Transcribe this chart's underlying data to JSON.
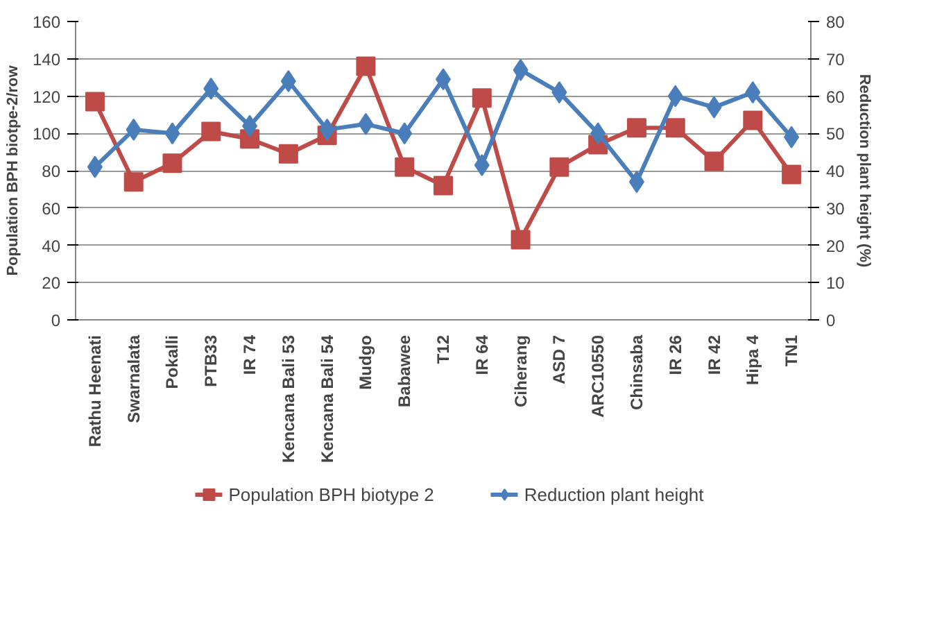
{
  "chart_data": {
    "type": "line",
    "categories": [
      "Rathu Heenati",
      "Swarnalata",
      "Pokalli",
      "PTB33",
      "IR 74",
      "Kencana Bali 53",
      "Kencana Bali 54",
      "Mudgo",
      "Babawee",
      "T12",
      "IR 64",
      "Ciherang",
      "ASD 7",
      "ARC10550",
      "Chinsaba",
      "IR 26",
      "IR 42",
      "Hipa 4",
      "TN1"
    ],
    "series": [
      {
        "name": "Population BPH biotype 2",
        "color": "#be4b48",
        "marker": "square",
        "values": [
          117,
          74,
          84,
          101,
          97,
          89,
          99,
          136,
          82,
          72,
          119,
          43,
          82,
          94,
          103,
          103,
          85,
          107,
          78
        ]
      },
      {
        "name": "Reduction plant height",
        "color": "#4a7ebb",
        "marker": "diamond",
        "axis": "y2",
        "values": [
          41,
          51,
          50,
          62,
          52,
          64,
          51,
          52.5,
          50,
          64.5,
          41.5,
          67,
          61,
          50,
          37,
          60,
          57,
          61,
          49
        ]
      }
    ],
    "ylabel": "Population BPH biotpe-2/row",
    "y2label": "Reduction plant height (%)",
    "ylim": [
      0,
      160
    ],
    "yticks": [
      0,
      20,
      40,
      60,
      80,
      100,
      120,
      140,
      160
    ],
    "y2lim": [
      0,
      80
    ],
    "y2ticks": [
      0,
      10,
      20,
      30,
      40,
      50,
      60,
      70,
      80
    ],
    "grid": "y",
    "legend": "bottom"
  }
}
